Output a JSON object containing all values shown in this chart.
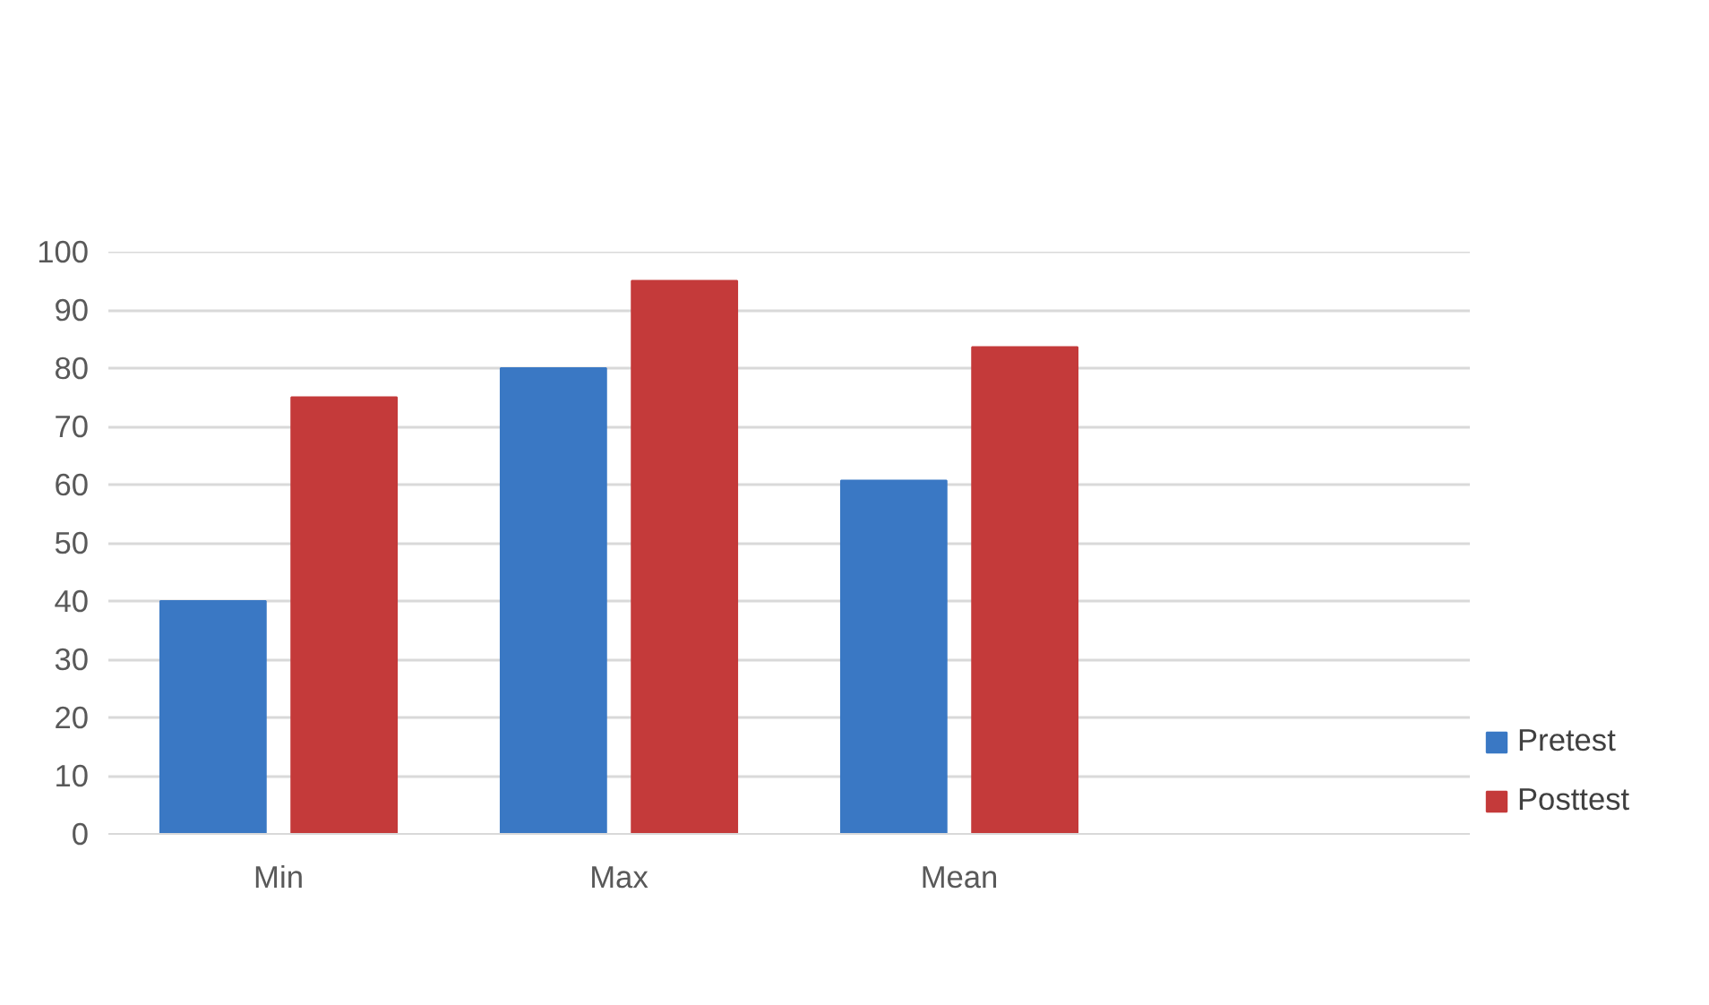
{
  "chart_data": {
    "type": "bar",
    "categories": [
      "Min",
      "Max",
      "Mean",
      null
    ],
    "series": [
      {
        "name": "Pretest",
        "color": "#3a78c4",
        "values": [
          40,
          80,
          60.7,
          null
        ]
      },
      {
        "name": "Posttest",
        "color": "#c43a3a",
        "values": [
          75,
          95,
          83.6,
          null
        ]
      }
    ],
    "ylim": [
      0,
      100
    ],
    "yticks": [
      0,
      10,
      20,
      30,
      40,
      50,
      60,
      70,
      80,
      90,
      100
    ],
    "grid": "y",
    "legend": "bottom right"
  }
}
